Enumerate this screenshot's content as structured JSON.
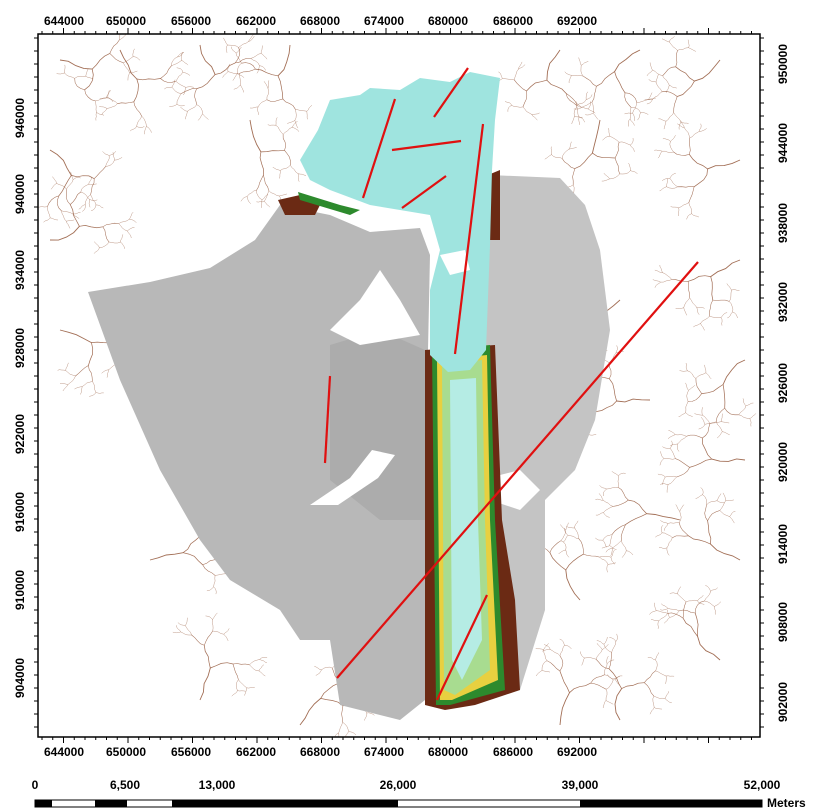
{
  "map": {
    "x_ticks": [
      "644000",
      "650000",
      "656000",
      "662000",
      "668000",
      "674000",
      "680000",
      "686000",
      "692000"
    ],
    "y_ticks_left": [
      "946000",
      "940000",
      "934000",
      "928000",
      "922000",
      "916000",
      "910000",
      "904000"
    ],
    "y_ticks_right": [
      "950000",
      "944000",
      "938000",
      "932000",
      "926000",
      "920000",
      "914000",
      "908000",
      "902000"
    ],
    "layers": {
      "drainage_color": "#8b4a2a",
      "terrain_color": "#b4b4b4",
      "water_color": "#9fe4df",
      "fault_color": "#e01010",
      "valley_colors": [
        "#6b2a14",
        "#2d8a2d",
        "#8fd080",
        "#e8d040"
      ]
    }
  },
  "scale_bar": {
    "labels": [
      "0",
      "6,500",
      "13,000",
      "26,000",
      "39,000",
      "52,000"
    ],
    "unit": "Meters"
  }
}
